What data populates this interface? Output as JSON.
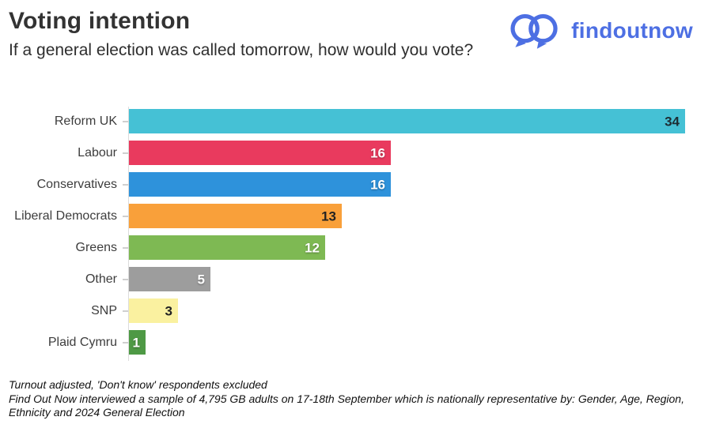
{
  "page": {
    "background": "#FFFFFF"
  },
  "header": {
    "title": "Voting intention",
    "subtitle": "If a general election was called tomorrow, how would you vote?"
  },
  "logo": {
    "text": "findoutnow",
    "color": "#4D6FE3",
    "icon": "two-overlapping-speech-bubble-circles-icon"
  },
  "chart_data": {
    "type": "bar",
    "orientation": "horizontal",
    "title": "Voting intention",
    "categories": [
      "Reform UK",
      "Labour",
      "Conservatives",
      "Liberal Democrats",
      "Greens",
      "Other",
      "SNP",
      "Plaid Cymru"
    ],
    "values": [
      34,
      16,
      16,
      13,
      12,
      5,
      3,
      1
    ],
    "bar_colors": [
      "#45C1D5",
      "#E93A5E",
      "#2E92DB",
      "#F9A03A",
      "#7EB953",
      "#9D9D9D",
      "#FAF1A0",
      "#4E9945"
    ],
    "value_label_colors": [
      "#1D2D33",
      "#FFFFFF",
      "#FFFFFF",
      "#222222",
      "#FFFFFF",
      "#FFFFFF",
      "#222222",
      "#FFFFFF"
    ],
    "xlim": [
      0,
      34
    ],
    "xlabel": "",
    "ylabel": "",
    "grid": "off",
    "legend": "none",
    "value_labels_shown": true
  },
  "footnotes": {
    "line1": "Turnout adjusted, 'Don't know' respondents excluded",
    "line2": "Find Out Now interviewed a sample of 4,795 GB adults on 17-18th September which is nationally representative by: Gender, Age, Region, Ethnicity and 2024 General Election"
  }
}
